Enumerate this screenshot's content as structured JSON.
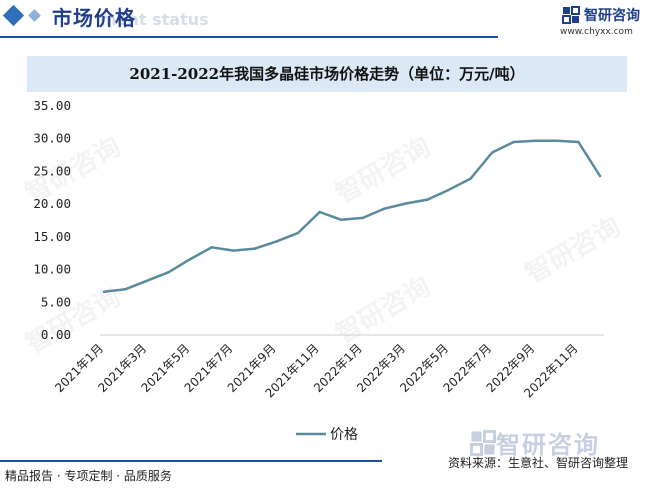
{
  "header": {
    "title": "市场价格",
    "title_faint": "ment status",
    "brand_name": "智研咨询",
    "brand_url": "www.chyxx.com"
  },
  "watermark": "智研咨询",
  "colors": {
    "accent": "#1f4fa0",
    "line": "#5a8a9e",
    "title_band": "#dbe9f6"
  },
  "chart_data": {
    "type": "line",
    "title": "2021-2022年我国多晶硅市场价格走势（单位：万元/吨）",
    "xlabel": "",
    "ylabel": "",
    "ylim": [
      0,
      35
    ],
    "yticks": [
      "0.00",
      "5.00",
      "10.00",
      "15.00",
      "20.00",
      "25.00",
      "30.00",
      "35.00"
    ],
    "grid": false,
    "legend_position": "bottom",
    "categories": [
      "2021年1月",
      "2021年2月",
      "2021年3月",
      "2021年4月",
      "2021年5月",
      "2021年6月",
      "2021年7月",
      "2021年8月",
      "2021年9月",
      "2021年10月",
      "2021年11月",
      "2021年12月",
      "2022年1月",
      "2022年2月",
      "2022年3月",
      "2022年4月",
      "2022年5月",
      "2022年6月",
      "2022年7月",
      "2022年8月",
      "2022年9月",
      "2022年10月",
      "2022年11月",
      "2022年12月"
    ],
    "tick_labels": [
      "2021年1月",
      "2021年3月",
      "2021年5月",
      "2021年7月",
      "2021年9月",
      "2021年11月",
      "2022年1月",
      "2022年3月",
      "2022年5月",
      "2022年7月",
      "2022年9月",
      "2022年11月"
    ],
    "series": [
      {
        "name": "价格",
        "values": [
          6.6,
          7.0,
          8.3,
          9.6,
          11.6,
          13.4,
          12.9,
          13.2,
          14.3,
          15.6,
          18.8,
          17.6,
          17.9,
          19.3,
          20.1,
          20.7,
          22.2,
          23.9,
          27.9,
          29.5,
          29.7,
          29.7,
          29.5,
          24.3
        ]
      }
    ]
  },
  "footer": {
    "left": "精品报告 · 专项定制 · 品质服务",
    "source": "资料来源：生意社、智研咨询整理",
    "brand": "智研咨询"
  }
}
